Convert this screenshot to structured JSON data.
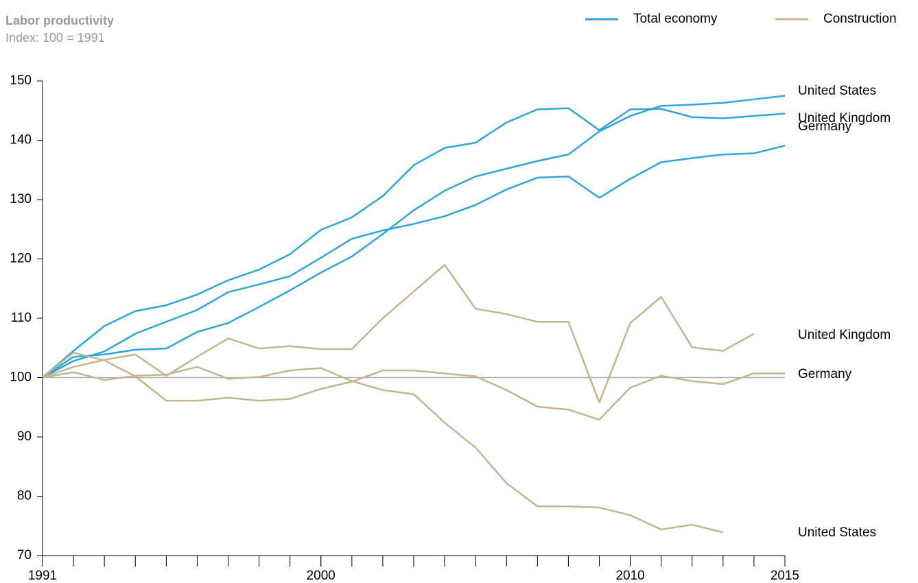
{
  "chart_data": {
    "type": "line",
    "title": "Labor productivity",
    "subtitle": "Index: 100 = 1991",
    "x": [
      1991,
      1992,
      1993,
      1994,
      1995,
      1996,
      1997,
      1998,
      1999,
      2000,
      2001,
      2002,
      2003,
      2004,
      2005,
      2006,
      2007,
      2008,
      2009,
      2010,
      2011,
      2012,
      2013,
      2014,
      2015
    ],
    "xlim": [
      1991,
      2015
    ],
    "xticks": [
      1991,
      2000,
      2010,
      2015
    ],
    "ylim": [
      70,
      150
    ],
    "yticks": [
      70,
      80,
      90,
      100,
      110,
      120,
      130,
      140,
      150
    ],
    "reference_line": 100,
    "legend": [
      {
        "name": "Total economy",
        "color": "#2ea6d9"
      },
      {
        "name": "Construction",
        "color": "#c4b48f"
      }
    ],
    "legend_position": "top-right",
    "series": [
      {
        "name": "United States",
        "color": "#2ea6d9",
        "values": [
          100,
          103.5,
          103.9,
          104.7,
          104.9,
          107.7,
          109.2,
          111.9,
          114.7,
          117.7,
          120.4,
          124.2,
          128.2,
          131.5,
          133.9,
          135.2,
          136.5,
          137.6,
          141.5,
          144.1,
          145.8,
          146.0,
          146.3,
          146.9,
          147.5
        ]
      },
      {
        "name": "United Kingdom",
        "color": "#2ea6d9",
        "values": [
          100,
          104.5,
          108.7,
          111.2,
          112.2,
          114.0,
          116.4,
          118.2,
          120.8,
          124.9,
          127.0,
          130.6,
          135.8,
          138.7,
          139.6,
          143.0,
          145.2,
          145.4,
          141.7,
          145.2,
          145.3,
          143.9,
          143.7,
          144.1,
          144.5
        ]
      },
      {
        "name": "Germany",
        "color": "#2ea6d9",
        "values": [
          100,
          102.8,
          104.4,
          107.4,
          109.4,
          111.4,
          114.4,
          115.7,
          117.1,
          120.2,
          123.4,
          124.8,
          125.9,
          127.2,
          129.1,
          131.7,
          133.7,
          133.9,
          130.3,
          133.5,
          136.3,
          137.0,
          137.6,
          137.8,
          139.1
        ]
      },
      {
        "name": "United Kingdom",
        "color": "#c4b48f",
        "values": [
          100,
          101.8,
          103.0,
          103.9,
          100.3,
          103.5,
          106.6,
          104.9,
          105.3,
          104.8,
          104.8,
          110.0,
          114.5,
          119.0,
          111.6,
          110.7,
          109.4,
          109.4,
          95.8,
          109.2,
          113.6,
          105.1,
          104.5,
          107.4,
          null
        ]
      },
      {
        "name": "Germany",
        "color": "#c4b48f",
        "values": [
          100,
          104.2,
          102.9,
          100.2,
          96.1,
          96.1,
          96.6,
          96.1,
          96.4,
          98.1,
          99.3,
          101.2,
          101.2,
          100.7,
          100.2,
          97.9,
          95.1,
          94.6,
          92.9,
          98.3,
          100.3,
          99.4,
          98.9,
          100.7,
          100.7
        ]
      },
      {
        "name": "United States",
        "color": "#c4b48f",
        "values": [
          100,
          100.9,
          99.6,
          100.3,
          100.5,
          101.8,
          99.8,
          100.1,
          101.2,
          101.6,
          99.4,
          97.9,
          97.2,
          92.4,
          88.2,
          82.2,
          78.3,
          78.3,
          78.1,
          76.8,
          74.4,
          75.2,
          73.9,
          null,
          null
        ]
      }
    ]
  }
}
